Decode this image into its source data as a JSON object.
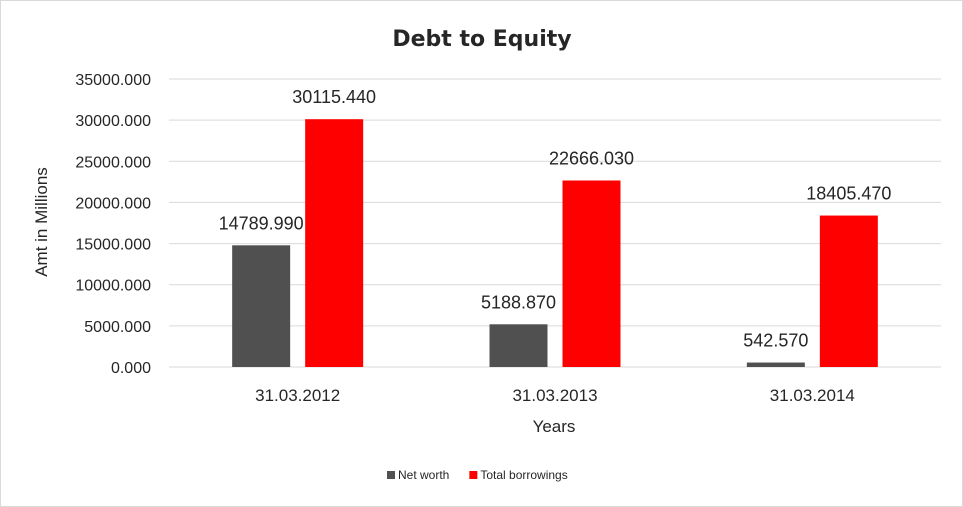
{
  "chart_data": {
    "type": "bar",
    "title": "Debt to Equity",
    "xlabel": "Years",
    "ylabel": "Amt in Millions",
    "categories": [
      "31.03.2012",
      "31.03.2013",
      "31.03.2014"
    ],
    "series": [
      {
        "name": "Net worth",
        "color": "#505050",
        "values": [
          14789.99,
          5188.87,
          542.57
        ],
        "labels": [
          "14789.990",
          "5188.870",
          "542.570"
        ]
      },
      {
        "name": "Total borrowings",
        "color": "#ff0000",
        "values": [
          30115.44,
          22666.03,
          18405.47
        ],
        "labels": [
          "30115.440",
          "22666.030",
          "18405.470"
        ]
      }
    ],
    "ylim": [
      0,
      35000
    ],
    "yticks": [
      0,
      5000,
      10000,
      15000,
      20000,
      25000,
      30000,
      35000
    ],
    "ytick_labels": [
      "0.000",
      "5000.000",
      "10000.000",
      "15000.000",
      "20000.000",
      "25000.000",
      "30000.000",
      "35000.000"
    ],
    "grid": true,
    "legend_position": "bottom"
  }
}
